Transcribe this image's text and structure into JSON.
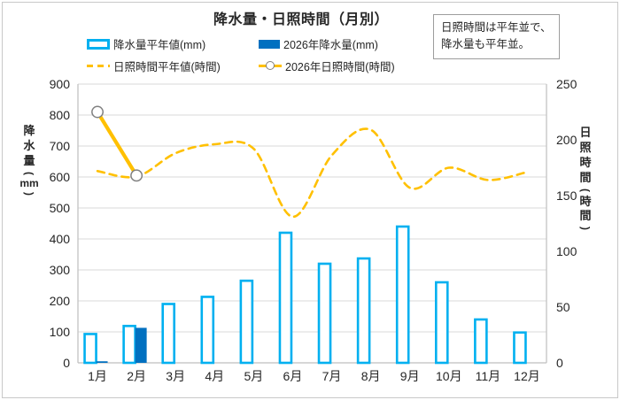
{
  "title": "降水量・日照時間（月別）",
  "note_box": {
    "lines": [
      "日照時間は平年並で、",
      "降水量も平年並。"
    ]
  },
  "colors": {
    "bar_outline": "#00B0F0",
    "bar_solid": "#0070C0",
    "line_yellow": "#FFC000",
    "marker_stroke": "#808080",
    "grid": "#D9D9D9",
    "axis": "#BFBFBF",
    "text": "#262626"
  },
  "chart_data": {
    "type": "bar",
    "subtype": "combo-bar-line",
    "title": "降水量・日照時間（月別）",
    "categories": [
      "1月",
      "2月",
      "3月",
      "4月",
      "5月",
      "6月",
      "7月",
      "8月",
      "9月",
      "10月",
      "11月",
      "12月"
    ],
    "series": [
      {
        "name": "降水量平年値(mm)",
        "chart": "bar",
        "style": "outline",
        "axis": "left",
        "color": "#00B0F0",
        "values": [
          93,
          119,
          190,
          213,
          265,
          420,
          320,
          337,
          440,
          260,
          140,
          98
        ]
      },
      {
        "name": "2026年降水量(mm)",
        "chart": "bar",
        "style": "solid",
        "axis": "left",
        "color": "#0070C0",
        "values": [
          5,
          113,
          null,
          null,
          null,
          null,
          null,
          null,
          null,
          null,
          null,
          null
        ]
      },
      {
        "name": "日照時間平年値(時間)",
        "chart": "line",
        "style": "dashed",
        "axis": "right",
        "color": "#FFC000",
        "values": [
          172,
          167,
          188,
          196,
          192,
          131,
          186,
          209,
          157,
          175,
          164,
          171
        ]
      },
      {
        "name": "2026年日照時間(時間)",
        "chart": "line",
        "style": "solid-marker",
        "axis": "right",
        "color": "#FFC000",
        "marker_stroke": "#808080",
        "values": [
          225,
          168,
          null,
          null,
          null,
          null,
          null,
          null,
          null,
          null,
          null,
          null
        ]
      }
    ],
    "left_axis": {
      "title": "降水量(mm)",
      "min": 0,
      "max": 900,
      "step": 100
    },
    "right_axis": {
      "title": "日照時間(時間)",
      "min": 0,
      "max": 250,
      "step": 50
    },
    "grid": true,
    "legend_position": "top"
  }
}
